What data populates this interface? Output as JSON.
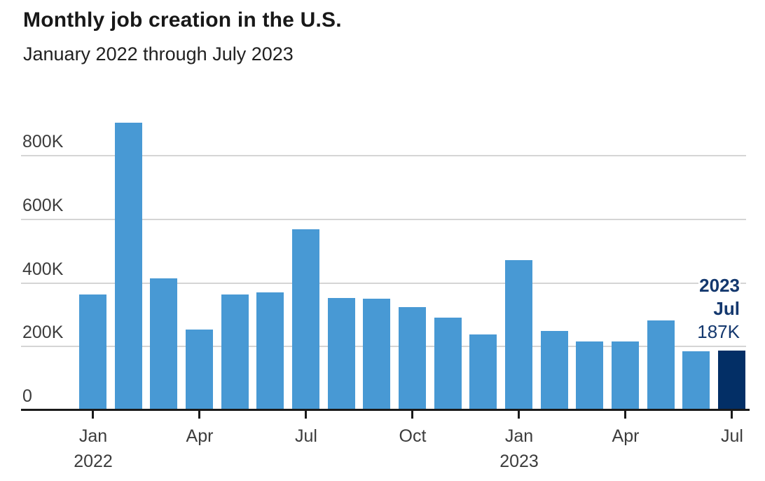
{
  "chart_data": {
    "type": "bar",
    "title": "Monthly job creation in the U.S.",
    "subtitle": "January 2022 through July 2023",
    "values_unit": "K (thousands of jobs)",
    "categories": [
      "Jan 2022",
      "Feb 2022",
      "Mar 2022",
      "Apr 2022",
      "May 2022",
      "Jun 2022",
      "Jul 2022",
      "Aug 2022",
      "Sep 2022",
      "Oct 2022",
      "Nov 2022",
      "Dec 2022",
      "Jan 2023",
      "Feb 2023",
      "Mar 2023",
      "Apr 2023",
      "May 2023",
      "Jun 2023",
      "Jul 2023"
    ],
    "values": [
      364,
      904,
      414,
      254,
      364,
      370,
      568,
      352,
      350,
      324,
      290,
      239,
      472,
      248,
      217,
      217,
      281,
      185,
      187
    ],
    "ylim": [
      0,
      880
    ],
    "grid": "horizontal",
    "legend": "none",
    "yticks": [
      {
        "value": 0,
        "label": "0"
      },
      {
        "value": 200,
        "label": "200K"
      },
      {
        "value": 400,
        "label": "400K"
      },
      {
        "value": 600,
        "label": "600K"
      },
      {
        "value": 800,
        "label": "800K"
      }
    ],
    "xticks": [
      {
        "index": 0,
        "label": "Jan",
        "year": "2022"
      },
      {
        "index": 3,
        "label": "Apr",
        "year": ""
      },
      {
        "index": 6,
        "label": "Jul",
        "year": ""
      },
      {
        "index": 9,
        "label": "Oct",
        "year": ""
      },
      {
        "index": 12,
        "label": "Jan",
        "year": "2023"
      },
      {
        "index": 15,
        "label": "Apr",
        "year": ""
      },
      {
        "index": 18,
        "label": "Jul",
        "year": ""
      }
    ],
    "highlight_index": 18,
    "annotation": {
      "year": "2023",
      "month": "Jul",
      "value": "187K"
    },
    "colors": {
      "bar": "#4899d4",
      "highlight_bar": "#032f66",
      "annotation_text": "#14386e",
      "gridline": "#d5d5d5",
      "axis_line": "#1a1a1a",
      "axis_text": "#3c3c3c",
      "title_text": "#181818"
    }
  }
}
